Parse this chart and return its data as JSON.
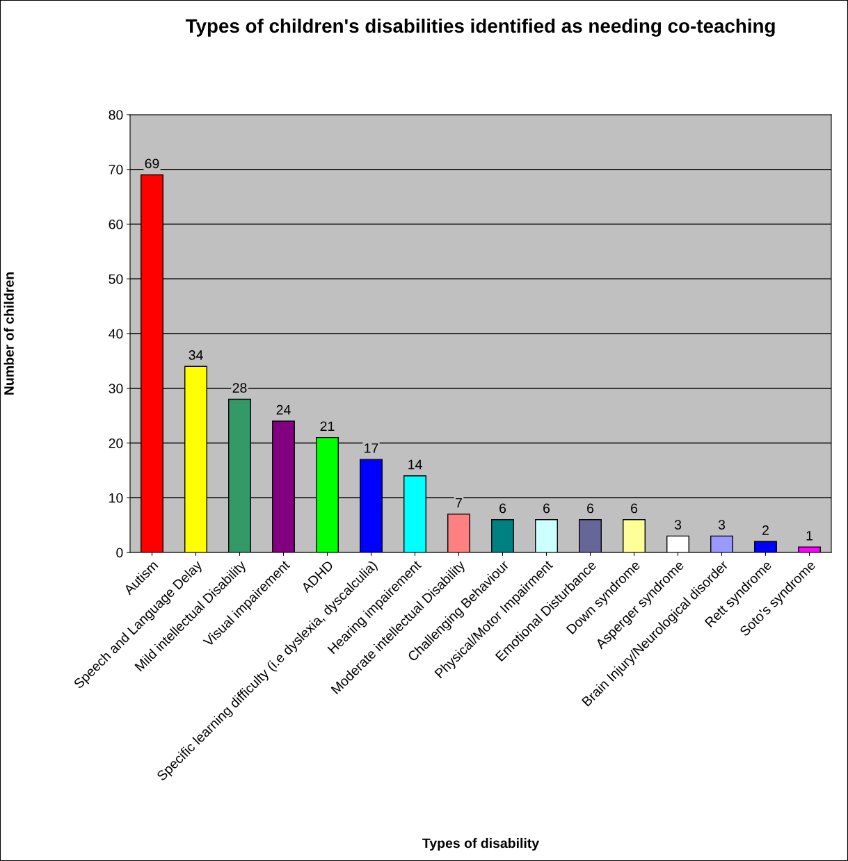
{
  "chart_data": {
    "type": "bar",
    "title": "Types of children's disabilities identified as needing co-teaching",
    "xlabel": "Types of disability",
    "ylabel": "Number of children",
    "categories": [
      "Autism",
      "Speech and Language Delay",
      "Mild intellectual Disability",
      "Visual impairement",
      "ADHD",
      "Specific learning difficulty (i.e dyslexia, dyscalculia)",
      "Hearing impairement",
      "Moderate intellectual Disability",
      "Challenging Behaviour",
      "Physical/Motor Impairment",
      "Emotional Disturbance",
      "Down syndrome",
      "Asperger syndrome",
      "Brain Injury/Neurological disorder",
      "Rett syndrome",
      "Soto's syndrome"
    ],
    "values": [
      69,
      34,
      28,
      24,
      21,
      17,
      14,
      7,
      6,
      6,
      6,
      6,
      3,
      3,
      2,
      1
    ],
    "colors": [
      "#ff0000",
      "#ffff00",
      "#339966",
      "#800080",
      "#00ff00",
      "#0000ff",
      "#00ffff",
      "#ff8080",
      "#008080",
      "#ccffff",
      "#666699",
      "#ffff99",
      "#ffffff",
      "#9999ff",
      "#0000ff",
      "#ff00ff"
    ],
    "ylim": [
      0,
      80
    ],
    "yticks": [
      0,
      10,
      20,
      30,
      40,
      50,
      60,
      70,
      80
    ],
    "grid": "y",
    "data_labels": true,
    "legend": false
  }
}
